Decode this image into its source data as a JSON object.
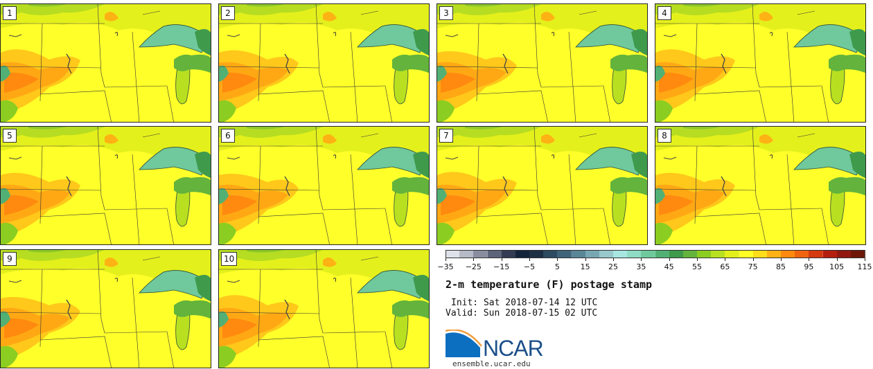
{
  "panels": [
    {
      "label": "1"
    },
    {
      "label": "2"
    },
    {
      "label": "3"
    },
    {
      "label": "4"
    },
    {
      "label": "5"
    },
    {
      "label": "6"
    },
    {
      "label": "7"
    },
    {
      "label": "8"
    },
    {
      "label": "9"
    },
    {
      "label": "10"
    }
  ],
  "colorbar": {
    "colors": [
      "#dfe1ea",
      "#b6b9c6",
      "#8a8d9e",
      "#5e6479",
      "#333c52",
      "#15233a",
      "#1d2f45",
      "#2c4a60",
      "#3f6479",
      "#5a8597",
      "#77a7b3",
      "#98c8cc",
      "#a8e6e0",
      "#8fdcc4",
      "#6fc99c",
      "#52b074",
      "#3f9a4c",
      "#63b33c",
      "#8ccd21",
      "#b8e020",
      "#e2ef1c",
      "#ffff26",
      "#ffdd1a",
      "#ffb214",
      "#ff8a0f",
      "#f06410",
      "#d43a10",
      "#b51f10",
      "#901810",
      "#6e1608"
    ],
    "tick_labels": [
      "−35",
      "−25",
      "−15",
      "−5",
      "5",
      "15",
      "25",
      "35",
      "45",
      "55",
      "65",
      "75",
      "85",
      "95",
      "105",
      "115"
    ]
  },
  "title": "2-m temperature (F) postage stamp",
  "init": "Init: Sat 2018-07-14 12 UTC",
  "valid": "Valid: Sun 2018-07-15 02 UTC",
  "logo": {
    "text": "NCAR",
    "url": "ensemble.ucar.edu"
  }
}
